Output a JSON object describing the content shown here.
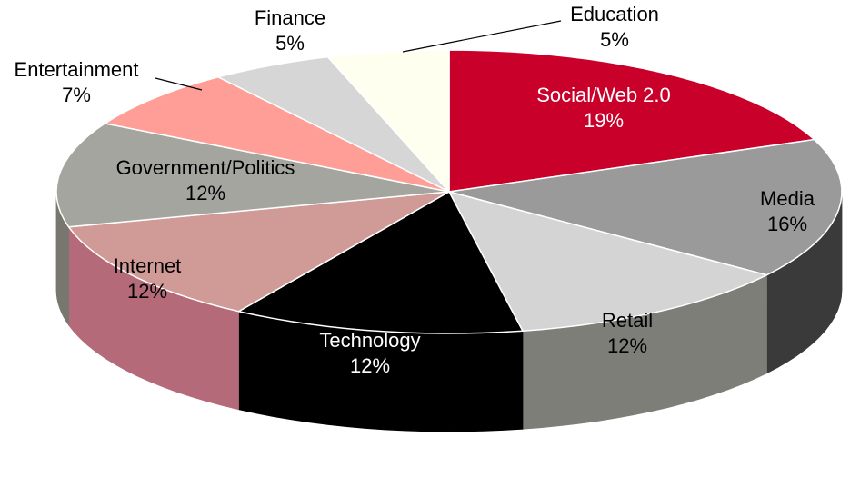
{
  "chart_data": {
    "type": "pie",
    "title": "",
    "legend": "none",
    "slices": [
      {
        "label": "Social/Web 2.0",
        "value": 19,
        "value_label": "19%",
        "color": "#C8002A",
        "side_color": "#8A0019",
        "text_color": "#ffffff"
      },
      {
        "label": "Media",
        "value": 16,
        "value_label": "16%",
        "color": "#9A9A9A",
        "side_color": "#3A3A3A",
        "text_color": "#000000"
      },
      {
        "label": "Retail",
        "value": 12,
        "value_label": "12%",
        "color": "#D4D4D4",
        "side_color": "#7E7E78",
        "text_color": "#000000"
      },
      {
        "label": "Technology",
        "value": 12,
        "value_label": "12%",
        "color": "#000000",
        "side_color": "#000000",
        "text_color": "#ffffff"
      },
      {
        "label": "Internet",
        "value": 12,
        "value_label": "12%",
        "color": "#D09A96",
        "side_color": "#B46A78",
        "text_color": "#000000"
      },
      {
        "label": "Government/Politics",
        "value": 12,
        "value_label": "12%",
        "color": "#A5A5A0",
        "side_color": "#77776F",
        "text_color": "#000000"
      },
      {
        "label": "Entertainment",
        "value": 7,
        "value_label": "7%",
        "color": "#FF9E96",
        "side_color": "#C47670",
        "text_color": "#000000"
      },
      {
        "label": "Finance",
        "value": 5,
        "value_label": "5%",
        "color": "#D6D6D6",
        "side_color": "#A0A0A0",
        "text_color": "#000000"
      },
      {
        "label": "Education",
        "value": 5,
        "value_label": "5%",
        "color": "#FFFFF0",
        "side_color": "#E6E6D6",
        "text_color": "#000000"
      }
    ]
  }
}
